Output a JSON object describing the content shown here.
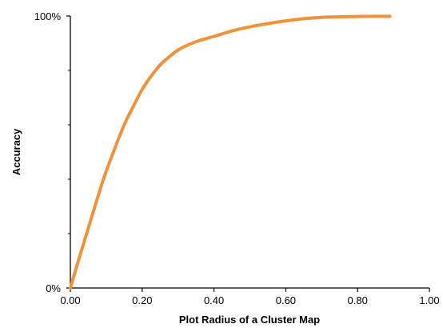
{
  "chart_data": {
    "type": "line",
    "title": "",
    "xlabel": "Plot Radius  of a Cluster Map",
    "ylabel": "Accuracy",
    "xlim": [
      0,
      1
    ],
    "ylim": [
      0,
      1
    ],
    "x_ticks": [
      "0.00",
      "0.20",
      "0.40",
      "0.60",
      "0.80",
      "1.00"
    ],
    "x_tick_values": [
      0,
      0.2,
      0.4,
      0.6,
      0.8,
      1.0
    ],
    "y_ticks": [
      "0%",
      "100%"
    ],
    "y_tick_values": [
      0,
      1
    ],
    "grid": false,
    "legend": "none",
    "series": [
      {
        "color": "#F0923A",
        "x": [
          0.0,
          0.02,
          0.05,
          0.08,
          0.1,
          0.12,
          0.15,
          0.18,
          0.2,
          0.22,
          0.25,
          0.28,
          0.3,
          0.33,
          0.36,
          0.4,
          0.45,
          0.5,
          0.55,
          0.6,
          0.65,
          0.7,
          0.75,
          0.8,
          0.85,
          0.89
        ],
        "y": [
          0.0,
          0.09,
          0.22,
          0.35,
          0.43,
          0.5,
          0.6,
          0.68,
          0.73,
          0.77,
          0.82,
          0.855,
          0.875,
          0.895,
          0.91,
          0.925,
          0.945,
          0.96,
          0.972,
          0.982,
          0.99,
          0.995,
          0.997,
          0.998,
          0.999,
          0.999
        ]
      }
    ]
  }
}
